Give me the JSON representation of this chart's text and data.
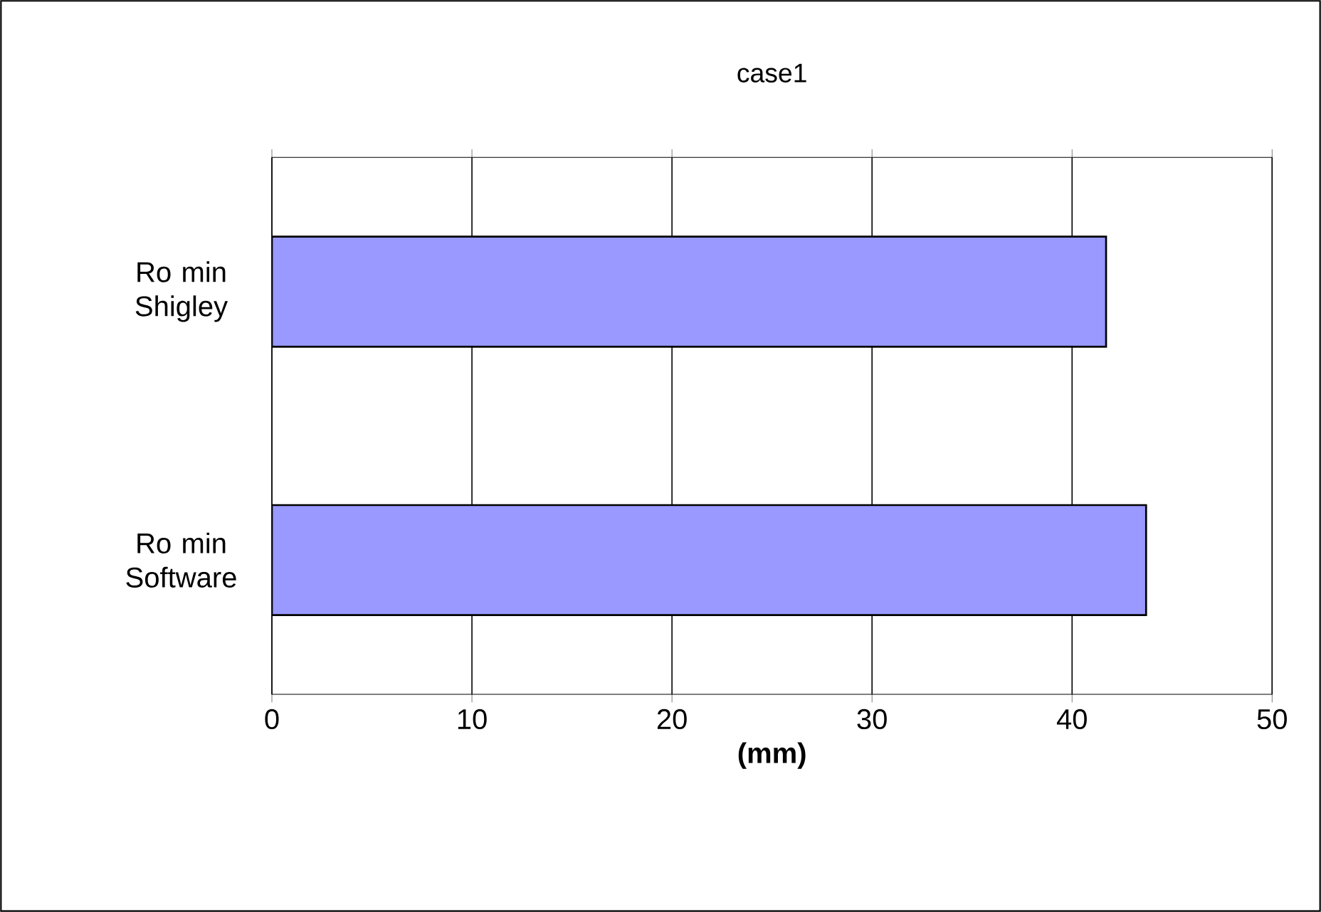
{
  "chart_data": {
    "type": "bar",
    "orientation": "horizontal",
    "title": "case1",
    "xlabel": "(mm)",
    "categories": [
      "Ro min Shigley",
      "Ro min Software"
    ],
    "values": [
      41.7,
      43.7
    ],
    "color": "#9999ff",
    "xlim": [
      0,
      50
    ],
    "xticks": [
      0,
      10,
      20,
      30,
      40,
      50
    ],
    "grid": "x"
  }
}
